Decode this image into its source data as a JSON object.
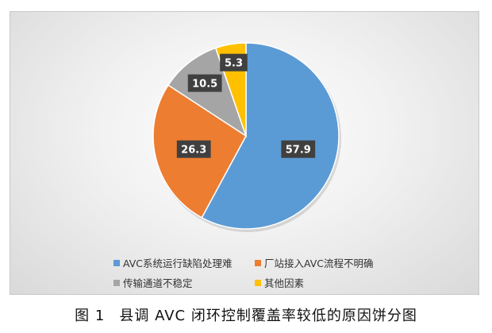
{
  "chart_data": {
    "type": "pie",
    "title": "",
    "series": [
      {
        "name": "AVC系统运行缺陷处理难",
        "value": 57.9,
        "label": "57.9",
        "color": "#5b9bd5"
      },
      {
        "name": "厂站接入AVC流程不明确",
        "value": 26.3,
        "label": "26.3",
        "color": "#ed7d31"
      },
      {
        "name": "传输通道不稳定",
        "value": 10.5,
        "label": "10.5",
        "color": "#a5a5a5"
      },
      {
        "name": "其他因素",
        "value": 5.3,
        "label": "5.3",
        "color": "#ffc000"
      }
    ],
    "legend": "bottom",
    "start_angle": "12 o'clock",
    "direction": "clockwise"
  },
  "caption": {
    "figure_number": "图 1",
    "text": "县调 AVC 闭环控制覆盖率较低的原因饼分图"
  }
}
